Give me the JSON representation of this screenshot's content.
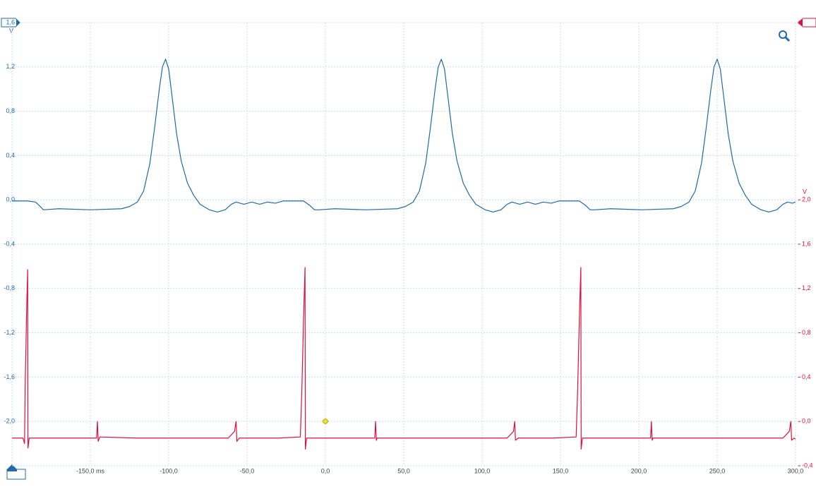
{
  "chart_data": {
    "type": "line",
    "y_label": "V",
    "y2_label": "V",
    "xlim": [
      -200,
      300
    ],
    "xticks": [
      {
        "value": -150,
        "label": "-150,0 ms"
      },
      {
        "value": -100,
        "label": "-100,0"
      },
      {
        "value": -50,
        "label": "-50,0"
      },
      {
        "value": 0,
        "label": "0,0"
      },
      {
        "value": 50,
        "label": "50,0"
      },
      {
        "value": 100,
        "label": "100,0"
      },
      {
        "value": 150,
        "label": "150,0"
      },
      {
        "value": 200,
        "label": "200,0"
      },
      {
        "value": 250,
        "label": "250,0"
      },
      {
        "value": 300,
        "label": "300,0"
      }
    ],
    "ylim": [
      -2.4,
      1.6
    ],
    "yticks": [
      {
        "value": 1.6,
        "label": "1,6"
      },
      {
        "value": 1.2,
        "label": "1,2"
      },
      {
        "value": 0.8,
        "label": "0,8"
      },
      {
        "value": 0.4,
        "label": "0,4"
      },
      {
        "value": 0,
        "label": "0,0"
      },
      {
        "value": -0.4,
        "label": "-0,4"
      },
      {
        "value": -0.8,
        "label": "-0,8"
      },
      {
        "value": -1.2,
        "label": "-1,2"
      },
      {
        "value": -1.6,
        "label": "-1,6"
      },
      {
        "value": -2.0,
        "label": "-2,0"
      }
    ],
    "y2lim": [
      -0.4,
      3.6
    ],
    "y2ticks": [
      {
        "value": 2.0,
        "label": "2,0"
      },
      {
        "value": 1.6,
        "label": "1,6"
      },
      {
        "value": 1.2,
        "label": "1,2"
      },
      {
        "value": 0.8,
        "label": "0,8"
      },
      {
        "value": 0.4,
        "label": "0,4"
      },
      {
        "value": 0.0,
        "label": "0,0"
      },
      {
        "value": -0.4,
        "label": "-0,4"
      }
    ],
    "grid": true,
    "series": [
      {
        "color": "#1f6aa8",
        "x": [
          -200,
          -190,
          -185,
          -182,
          -180,
          -170,
          -150,
          -130,
          -125,
          -120,
          -116,
          -112,
          -109,
          -106,
          -104,
          -102,
          -100,
          -98,
          -95,
          -92,
          -88,
          -84,
          -80,
          -74,
          -69,
          -64,
          -60,
          -57,
          -52,
          -47,
          -42,
          -37,
          -32,
          -27,
          -20,
          -14,
          -10,
          -7,
          -4,
          6,
          26,
          46,
          51,
          56,
          60,
          64,
          67,
          70,
          72,
          74,
          76,
          78,
          81,
          84,
          88,
          92,
          96,
          102,
          107,
          112,
          116,
          119,
          124,
          129,
          134,
          139,
          144,
          149,
          156,
          162,
          166,
          169,
          172,
          182,
          202,
          222,
          227,
          232,
          236,
          240,
          243,
          246,
          248,
          250,
          252,
          254,
          257,
          260,
          264,
          268,
          272,
          278,
          283,
          288,
          292,
          295,
          298,
          300
        ],
        "values": [
          -0.01,
          -0.01,
          -0.02,
          -0.06,
          -0.09,
          -0.08,
          -0.09,
          -0.08,
          -0.06,
          -0.02,
          0.08,
          0.33,
          0.65,
          1.0,
          1.2,
          1.27,
          1.18,
          0.95,
          0.6,
          0.35,
          0.15,
          0.04,
          -0.04,
          -0.09,
          -0.11,
          -0.09,
          -0.04,
          -0.02,
          -0.04,
          -0.02,
          -0.04,
          -0.02,
          -0.03,
          -0.01,
          -0.01,
          -0.01,
          -0.05,
          -0.09,
          -0.09,
          -0.08,
          -0.09,
          -0.08,
          -0.06,
          -0.02,
          0.08,
          0.33,
          0.65,
          1.0,
          1.2,
          1.27,
          1.18,
          0.95,
          0.6,
          0.35,
          0.15,
          0.04,
          -0.04,
          -0.09,
          -0.11,
          -0.09,
          -0.04,
          -0.02,
          -0.04,
          -0.02,
          -0.04,
          -0.02,
          -0.03,
          -0.01,
          -0.01,
          -0.01,
          -0.05,
          -0.09,
          -0.09,
          -0.08,
          -0.09,
          -0.08,
          -0.06,
          -0.02,
          0.08,
          0.33,
          0.65,
          1.0,
          1.2,
          1.27,
          1.18,
          0.95,
          0.6,
          0.35,
          0.15,
          0.04,
          -0.04,
          -0.09,
          -0.11,
          -0.09,
          -0.04,
          -0.02,
          -0.03,
          -0.02
        ]
      },
      {
        "color": "#dc1040",
        "axis": "y2",
        "x": [
          -200,
          -193,
          -192,
          -191.5,
          -190.5,
          -190,
          -189.8,
          -189,
          -170,
          -146,
          -145.5,
          -145,
          -144,
          -120,
          -100,
          -62,
          -58,
          -57,
          -56.5,
          -55,
          -30,
          -16,
          -15,
          -14,
          -13,
          -12.8,
          -12,
          10,
          31.5,
          32,
          32.5,
          33,
          60,
          90,
          116,
          120,
          120.8,
          121.3,
          123,
          145,
          160,
          161,
          162,
          163,
          163.2,
          164,
          190,
          207.5,
          208,
          208.5,
          209,
          240,
          270,
          292,
          296,
          297,
          297.5,
          299,
          300
        ],
        "values": [
          -0.15,
          -0.15,
          -0.2,
          0.4,
          1.1,
          1.37,
          -0.24,
          -0.15,
          -0.15,
          -0.15,
          0.0,
          -0.18,
          -0.14,
          -0.15,
          -0.15,
          -0.15,
          -0.09,
          0.0,
          -0.18,
          -0.15,
          -0.15,
          -0.14,
          0.3,
          0.9,
          1.39,
          -0.25,
          -0.15,
          -0.15,
          -0.15,
          0.0,
          -0.17,
          -0.15,
          -0.15,
          -0.15,
          -0.15,
          -0.09,
          0.0,
          -0.17,
          -0.15,
          -0.15,
          -0.14,
          0.3,
          0.9,
          1.39,
          -0.25,
          -0.15,
          -0.15,
          -0.15,
          0.0,
          -0.17,
          -0.15,
          -0.15,
          -0.15,
          -0.15,
          -0.09,
          0.0,
          -0.17,
          -0.15,
          -0.16
        ]
      }
    ]
  }
}
